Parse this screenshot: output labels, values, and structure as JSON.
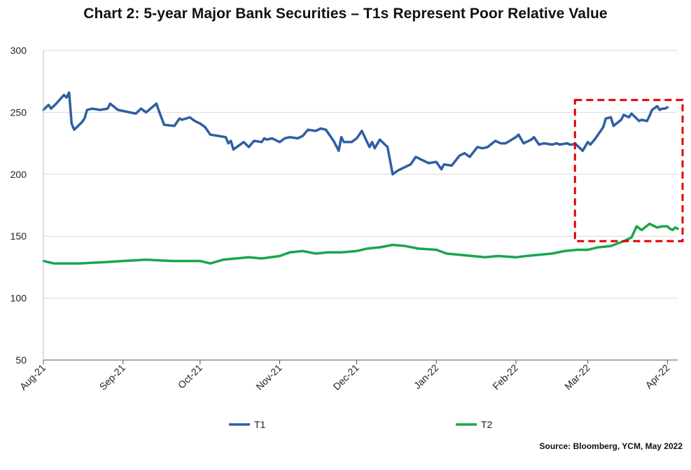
{
  "chart_data": {
    "type": "line",
    "title": "Chart 2: 5-year Major Bank Securities – T1s Represent Poor Relative Value",
    "source": "Source: Bloomberg, YCM, May 2022",
    "ylim": [
      50,
      300
    ],
    "yticks": [
      50,
      100,
      150,
      200,
      250,
      300
    ],
    "grid": true,
    "legend": "bottom-center",
    "x_ticks": [
      {
        "label": "Aug-21",
        "x": "2021-08-01"
      },
      {
        "label": "Sep-21",
        "x": "2021-09-01"
      },
      {
        "label": "Oct-21",
        "x": "2021-10-01"
      },
      {
        "label": "Nov-21",
        "x": "2021-11-01"
      },
      {
        "label": "Dec-21",
        "x": "2021-12-01"
      },
      {
        "label": "Jan-22",
        "x": "2022-01-01"
      },
      {
        "label": "Feb-22",
        "x": "2022-02-01"
      },
      {
        "label": "Mar-22",
        "x": "2022-03-01"
      },
      {
        "label": "Apr-22",
        "x": "2022-04-01"
      }
    ],
    "x_range": [
      "2021-08-01",
      "2022-04-05"
    ],
    "highlight_box": {
      "x": [
        "2022-02-24",
        "2022-04-08"
      ],
      "y": [
        146,
        260
      ],
      "color": "#e00000",
      "style": "dashed"
    },
    "series": [
      {
        "name": "T1",
        "color": "#2e5fa3",
        "points": [
          [
            "2021-08-01",
            252
          ],
          [
            "2021-08-03",
            256
          ],
          [
            "2021-08-04",
            253
          ],
          [
            "2021-08-06",
            257
          ],
          [
            "2021-08-09",
            264
          ],
          [
            "2021-08-10",
            262
          ],
          [
            "2021-08-11",
            266
          ],
          [
            "2021-08-12",
            241
          ],
          [
            "2021-08-13",
            236
          ],
          [
            "2021-08-16",
            242
          ],
          [
            "2021-08-17",
            245
          ],
          [
            "2021-08-18",
            252
          ],
          [
            "2021-08-20",
            253
          ],
          [
            "2021-08-23",
            252
          ],
          [
            "2021-08-26",
            253
          ],
          [
            "2021-08-27",
            257
          ],
          [
            "2021-08-30",
            252
          ],
          [
            "2021-09-06",
            249
          ],
          [
            "2021-09-08",
            253
          ],
          [
            "2021-09-10",
            250
          ],
          [
            "2021-09-14",
            257
          ],
          [
            "2021-09-15",
            251
          ],
          [
            "2021-09-17",
            240
          ],
          [
            "2021-09-21",
            239
          ],
          [
            "2021-09-23",
            245
          ],
          [
            "2021-09-24",
            244
          ],
          [
            "2021-09-27",
            246
          ],
          [
            "2021-09-29",
            243
          ],
          [
            "2021-10-01",
            241
          ],
          [
            "2021-10-03",
            238
          ],
          [
            "2021-10-05",
            232
          ],
          [
            "2021-10-08",
            231
          ],
          [
            "2021-10-11",
            230
          ],
          [
            "2021-10-12",
            225
          ],
          [
            "2021-10-13",
            227
          ],
          [
            "2021-10-14",
            220
          ],
          [
            "2021-10-18",
            226
          ],
          [
            "2021-10-20",
            222
          ],
          [
            "2021-10-22",
            227
          ],
          [
            "2021-10-25",
            226
          ],
          [
            "2021-10-26",
            229
          ],
          [
            "2021-10-27",
            228
          ],
          [
            "2021-10-29",
            229
          ],
          [
            "2021-11-01",
            226
          ],
          [
            "2021-11-03",
            229
          ],
          [
            "2021-11-05",
            230
          ],
          [
            "2021-11-08",
            229
          ],
          [
            "2021-11-10",
            231
          ],
          [
            "2021-11-12",
            236
          ],
          [
            "2021-11-15",
            235
          ],
          [
            "2021-11-17",
            237
          ],
          [
            "2021-11-19",
            236
          ],
          [
            "2021-11-22",
            227
          ],
          [
            "2021-11-24",
            219
          ],
          [
            "2021-11-25",
            230
          ],
          [
            "2021-11-26",
            226
          ],
          [
            "2021-11-29",
            226
          ],
          [
            "2021-12-01",
            229
          ],
          [
            "2021-12-02",
            232
          ],
          [
            "2021-12-03",
            235
          ],
          [
            "2021-12-06",
            222
          ],
          [
            "2021-12-07",
            226
          ],
          [
            "2021-12-08",
            221
          ],
          [
            "2021-12-10",
            228
          ],
          [
            "2021-12-13",
            222
          ],
          [
            "2021-12-15",
            200
          ],
          [
            "2021-12-17",
            203
          ],
          [
            "2021-12-22",
            208
          ],
          [
            "2021-12-24",
            214
          ],
          [
            "2021-12-29",
            209
          ],
          [
            "2022-01-01",
            210
          ],
          [
            "2022-01-03",
            204
          ],
          [
            "2022-01-04",
            208
          ],
          [
            "2022-01-07",
            207
          ],
          [
            "2022-01-10",
            215
          ],
          [
            "2022-01-12",
            217
          ],
          [
            "2022-01-14",
            214
          ],
          [
            "2022-01-17",
            222
          ],
          [
            "2022-01-19",
            221
          ],
          [
            "2022-01-21",
            222
          ],
          [
            "2022-01-24",
            227
          ],
          [
            "2022-01-26",
            225
          ],
          [
            "2022-01-28",
            225
          ],
          [
            "2022-02-01",
            230
          ],
          [
            "2022-02-02",
            232
          ],
          [
            "2022-02-04",
            225
          ],
          [
            "2022-02-07",
            228
          ],
          [
            "2022-02-08",
            230
          ],
          [
            "2022-02-10",
            224
          ],
          [
            "2022-02-12",
            225
          ],
          [
            "2022-02-15",
            224
          ],
          [
            "2022-02-17",
            225
          ],
          [
            "2022-02-18",
            224
          ],
          [
            "2022-02-21",
            225
          ],
          [
            "2022-02-22",
            224
          ],
          [
            "2022-02-23",
            224
          ],
          [
            "2022-02-24",
            225
          ],
          [
            "2022-02-25",
            223
          ],
          [
            "2022-02-27",
            219
          ],
          [
            "2022-03-01",
            226
          ],
          [
            "2022-03-02",
            224
          ],
          [
            "2022-03-04",
            229
          ],
          [
            "2022-03-07",
            238
          ],
          [
            "2022-03-08",
            245
          ],
          [
            "2022-03-10",
            246
          ],
          [
            "2022-03-11",
            239
          ],
          [
            "2022-03-14",
            244
          ],
          [
            "2022-03-15",
            248
          ],
          [
            "2022-03-17",
            246
          ],
          [
            "2022-03-18",
            249
          ],
          [
            "2022-03-21",
            243
          ],
          [
            "2022-03-22",
            244
          ],
          [
            "2022-03-24",
            243
          ],
          [
            "2022-03-25",
            247
          ],
          [
            "2022-03-26",
            252
          ],
          [
            "2022-03-28",
            255
          ],
          [
            "2022-03-29",
            252
          ],
          [
            "2022-03-30",
            253
          ],
          [
            "2022-03-31",
            253
          ],
          [
            "2022-04-01",
            254
          ]
        ]
      },
      {
        "name": "T2",
        "color": "#19a64d",
        "points": [
          [
            "2021-08-01",
            130
          ],
          [
            "2021-08-05",
            128
          ],
          [
            "2021-08-15",
            128
          ],
          [
            "2021-08-25",
            129
          ],
          [
            "2021-09-01",
            130
          ],
          [
            "2021-09-10",
            131
          ],
          [
            "2021-09-20",
            130
          ],
          [
            "2021-10-01",
            130
          ],
          [
            "2021-10-05",
            128
          ],
          [
            "2021-10-10",
            131
          ],
          [
            "2021-10-20",
            133
          ],
          [
            "2021-10-25",
            132
          ],
          [
            "2021-11-01",
            134
          ],
          [
            "2021-11-05",
            137
          ],
          [
            "2021-11-10",
            138
          ],
          [
            "2021-11-15",
            136
          ],
          [
            "2021-11-20",
            137
          ],
          [
            "2021-11-25",
            137
          ],
          [
            "2021-12-01",
            138
          ],
          [
            "2021-12-05",
            140
          ],
          [
            "2021-12-10",
            141
          ],
          [
            "2021-12-15",
            143
          ],
          [
            "2021-12-20",
            142
          ],
          [
            "2021-12-25",
            140
          ],
          [
            "2022-01-01",
            139
          ],
          [
            "2022-01-05",
            136
          ],
          [
            "2022-01-10",
            135
          ],
          [
            "2022-01-15",
            134
          ],
          [
            "2022-01-20",
            133
          ],
          [
            "2022-01-25",
            134
          ],
          [
            "2022-02-01",
            133
          ],
          [
            "2022-02-05",
            134
          ],
          [
            "2022-02-10",
            135
          ],
          [
            "2022-02-15",
            136
          ],
          [
            "2022-02-20",
            138
          ],
          [
            "2022-02-25",
            139
          ],
          [
            "2022-03-01",
            139
          ],
          [
            "2022-03-05",
            141
          ],
          [
            "2022-03-10",
            142
          ],
          [
            "2022-03-15",
            146
          ],
          [
            "2022-03-18",
            149
          ],
          [
            "2022-03-20",
            158
          ],
          [
            "2022-03-22",
            155
          ],
          [
            "2022-03-25",
            160
          ],
          [
            "2022-03-28",
            157
          ],
          [
            "2022-03-30",
            158
          ],
          [
            "2022-04-01",
            158
          ],
          [
            "2022-04-02",
            156
          ],
          [
            "2022-04-03",
            155
          ],
          [
            "2022-04-04",
            157
          ],
          [
            "2022-04-05",
            156
          ]
        ]
      }
    ]
  }
}
